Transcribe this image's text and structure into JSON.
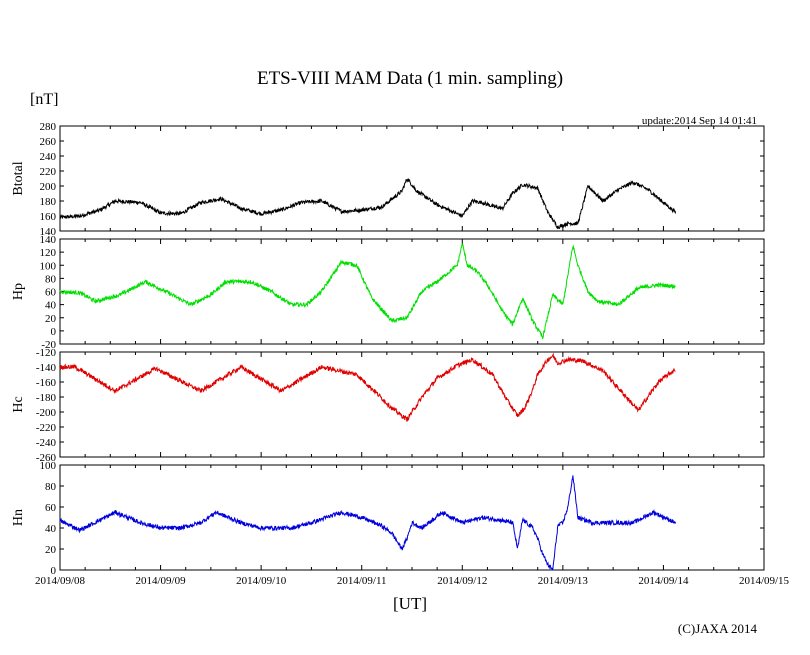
{
  "chart_data": {
    "type": "line",
    "title": "ETS-VIII MAM Data (1 min. sampling)",
    "unit_label": "[nT]",
    "update_text": "update:2014 Sep 14 01:41",
    "xlabel": "[UT]",
    "credit": "(C)JAXA 2014",
    "x_ticks": [
      "2014/09/08",
      "2014/09/09",
      "2014/09/10",
      "2014/09/11",
      "2014/09/12",
      "2014/09/13",
      "2014/09/14",
      "2014/09/15"
    ],
    "xlim": [
      0,
      7
    ],
    "grid": false,
    "panels": [
      {
        "name": "Btotal",
        "color": "#000000",
        "ylim": [
          140,
          280
        ],
        "yticks": [
          "140",
          "160",
          "180",
          "200",
          "220",
          "240",
          "260",
          "280"
        ],
        "noise": 2.5,
        "x": [
          0.0,
          0.2,
          0.4,
          0.55,
          0.8,
          1.0,
          1.2,
          1.4,
          1.6,
          1.8,
          2.0,
          2.2,
          2.4,
          2.6,
          2.8,
          3.0,
          3.2,
          3.4,
          3.45,
          3.55,
          3.75,
          4.0,
          4.1,
          4.2,
          4.3,
          4.4,
          4.5,
          4.6,
          4.75,
          4.85,
          4.95,
          5.05,
          5.15,
          5.25,
          5.4,
          5.55,
          5.7,
          5.85,
          6.0,
          6.12
        ],
        "y": [
          158,
          160,
          168,
          180,
          178,
          164,
          163,
          178,
          183,
          170,
          163,
          168,
          178,
          180,
          166,
          168,
          172,
          193,
          210,
          193,
          175,
          160,
          180,
          178,
          173,
          170,
          190,
          202,
          197,
          165,
          145,
          150,
          150,
          200,
          180,
          195,
          205,
          195,
          178,
          165
        ]
      },
      {
        "name": "Hp",
        "color": "#00e000",
        "ylim": [
          -20,
          140
        ],
        "yticks": [
          "-20",
          "0",
          "20",
          "40",
          "60",
          "80",
          "100",
          "120",
          "140"
        ],
        "noise": 3,
        "x": [
          0.0,
          0.2,
          0.35,
          0.6,
          0.85,
          1.05,
          1.3,
          1.5,
          1.65,
          1.9,
          2.1,
          2.3,
          2.45,
          2.6,
          2.8,
          2.95,
          3.1,
          3.3,
          3.45,
          3.6,
          3.75,
          3.95,
          4.0,
          4.05,
          4.15,
          4.25,
          4.4,
          4.5,
          4.6,
          4.7,
          4.8,
          4.9,
          5.0,
          5.05,
          5.1,
          5.15,
          5.2,
          5.25,
          5.35,
          5.55,
          5.75,
          5.95,
          6.12
        ],
        "y": [
          60,
          58,
          45,
          55,
          75,
          60,
          40,
          55,
          75,
          75,
          60,
          40,
          40,
          60,
          105,
          100,
          50,
          15,
          20,
          60,
          75,
          100,
          133,
          100,
          90,
          70,
          30,
          10,
          50,
          15,
          -10,
          55,
          40,
          85,
          130,
          100,
          80,
          60,
          45,
          40,
          65,
          70,
          68
        ]
      },
      {
        "name": "Hc",
        "color": "#e00000",
        "ylim": [
          -260,
          -120
        ],
        "yticks": [
          "-260",
          "-240",
          "-220",
          "-200",
          "-180",
          "-160",
          "-140",
          "-120"
        ],
        "noise": 3,
        "x": [
          0.0,
          0.15,
          0.55,
          0.95,
          1.4,
          1.8,
          2.2,
          2.6,
          2.95,
          3.15,
          3.3,
          3.45,
          3.6,
          3.75,
          3.95,
          4.1,
          4.3,
          4.45,
          4.55,
          4.62,
          4.7,
          4.75,
          4.8,
          4.85,
          4.9,
          4.95,
          5.05,
          5.2,
          5.4,
          5.55,
          5.75,
          5.95,
          6.12
        ],
        "y": [
          -140,
          -140,
          -172,
          -142,
          -172,
          -140,
          -172,
          -140,
          -150,
          -175,
          -195,
          -210,
          -180,
          -155,
          -138,
          -130,
          -150,
          -185,
          -205,
          -195,
          -170,
          -150,
          -140,
          -130,
          -125,
          -135,
          -130,
          -132,
          -145,
          -168,
          -198,
          -160,
          -143
        ]
      },
      {
        "name": "Hn",
        "color": "#0000dd",
        "ylim": [
          0,
          100
        ],
        "yticks": [
          "0",
          "20",
          "40",
          "60",
          "80",
          "100"
        ],
        "noise": 2,
        "x": [
          0.0,
          0.2,
          0.55,
          0.8,
          1.0,
          1.2,
          1.4,
          1.55,
          1.8,
          2.0,
          2.3,
          2.5,
          2.8,
          3.0,
          3.2,
          3.3,
          3.4,
          3.45,
          3.5,
          3.6,
          3.8,
          4.0,
          4.2,
          4.35,
          4.5,
          4.55,
          4.6,
          4.7,
          4.75,
          4.8,
          4.85,
          4.9,
          4.95,
          5.0,
          5.05,
          5.1,
          5.15,
          5.2,
          5.3,
          5.5,
          5.7,
          5.9,
          6.12
        ],
        "y": [
          47,
          38,
          55,
          45,
          40,
          40,
          45,
          55,
          45,
          40,
          40,
          45,
          55,
          50,
          42,
          35,
          20,
          30,
          45,
          40,
          55,
          45,
          50,
          48,
          45,
          20,
          48,
          40,
          30,
          15,
          5,
          0,
          42,
          45,
          60,
          90,
          50,
          48,
          45,
          45,
          45,
          55,
          45
        ]
      }
    ]
  }
}
